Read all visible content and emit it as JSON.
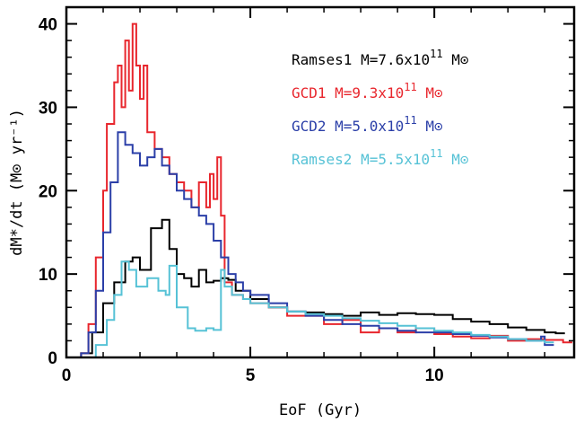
{
  "chart_data": {
    "type": "line",
    "step": true,
    "xlabel": "EoF (Gyr)",
    "ylabel": "dM*/dt (M⊙ yr⁻¹)",
    "xlim": [
      0,
      13.8
    ],
    "ylim": [
      0,
      42
    ],
    "xticks": [
      0,
      5,
      10
    ],
    "yticks": [
      0,
      10,
      20,
      30,
      40
    ],
    "grid": false,
    "legend_position": "top-right",
    "series": [
      {
        "name": "Ramses1",
        "mass_label": "M=7.6x10",
        "mass_exp": "11",
        "mass_unit": "M⊙",
        "color": "#000000",
        "x": [
          0.4,
          0.7,
          1.0,
          1.3,
          1.6,
          1.8,
          2.0,
          2.3,
          2.6,
          2.8,
          3.0,
          3.2,
          3.4,
          3.6,
          3.8,
          4.0,
          4.2,
          4.4,
          4.6,
          5.0,
          5.5,
          6.0,
          6.5,
          7.0,
          7.5,
          8.0,
          8.5,
          9.0,
          9.5,
          10.0,
          10.5,
          11.0,
          11.5,
          12.0,
          12.5,
          13.0,
          13.3
        ],
        "y": [
          0.5,
          3,
          6.5,
          9,
          11.5,
          12,
          10.5,
          15.5,
          16.5,
          13,
          10,
          9.5,
          8.5,
          10.5,
          9,
          9.2,
          9.5,
          9.3,
          8,
          7,
          6,
          5.5,
          5.4,
          5.2,
          5.0,
          5.4,
          5.1,
          5.3,
          5.2,
          5.1,
          4.6,
          4.3,
          4.0,
          3.6,
          3.3,
          3.0,
          2.9
        ]
      },
      {
        "name": "GCD1",
        "mass_label": "M=9.3x10",
        "mass_exp": "11",
        "mass_unit": "M⊙",
        "color": "#e8262d",
        "x": [
          0.4,
          0.6,
          0.8,
          1.0,
          1.1,
          1.3,
          1.4,
          1.5,
          1.6,
          1.7,
          1.8,
          1.9,
          2.0,
          2.1,
          2.2,
          2.4,
          2.6,
          2.8,
          3.0,
          3.2,
          3.4,
          3.6,
          3.8,
          3.9,
          4.0,
          4.1,
          4.2,
          4.3,
          4.5,
          4.8,
          5.0,
          5.5,
          6.0,
          6.5,
          7.0,
          7.5,
          8.0,
          8.5,
          9.0,
          9.5,
          10.0,
          10.5,
          11.0,
          11.5,
          12.0,
          12.5,
          13.0,
          13.5
        ],
        "y": [
          0.5,
          4,
          12,
          20,
          28,
          33,
          35,
          30,
          38,
          32,
          40,
          35,
          31,
          35,
          27,
          25,
          24,
          22,
          21,
          20,
          18,
          21,
          18,
          22,
          19,
          24,
          17,
          9,
          7.5,
          7,
          6.5,
          6,
          5,
          5,
          4,
          4.5,
          3,
          3.5,
          3,
          3.5,
          2.8,
          2.5,
          2.3,
          2.6,
          2.0,
          2.2,
          2.1,
          1.8
        ]
      },
      {
        "name": "GCD2",
        "mass_label": "M=5.0x10",
        "mass_exp": "11",
        "mass_unit": "M⊙",
        "color": "#2b3fa8",
        "x": [
          0.4,
          0.6,
          0.8,
          1.0,
          1.2,
          1.4,
          1.6,
          1.8,
          2.0,
          2.2,
          2.4,
          2.6,
          2.8,
          3.0,
          3.2,
          3.4,
          3.6,
          3.8,
          4.0,
          4.2,
          4.4,
          4.6,
          4.8,
          5.0,
          5.5,
          6.0,
          6.5,
          7.0,
          7.5,
          8.0,
          8.5,
          9.0,
          9.5,
          10.0,
          10.5,
          11.0,
          11.5,
          12.0,
          12.5,
          12.9,
          13.0
        ],
        "y": [
          0.5,
          3,
          8,
          15,
          21,
          27,
          25.5,
          24.5,
          23,
          24,
          25,
          23,
          22,
          20,
          19,
          18,
          17,
          16,
          14,
          12,
          10,
          9,
          8,
          7.5,
          6.5,
          5.5,
          5,
          4.5,
          4,
          3.8,
          3.5,
          3.2,
          3,
          3,
          2.8,
          2.6,
          2.4,
          2.2,
          2.0,
          2.5,
          1.5
        ]
      },
      {
        "name": "Ramses2",
        "mass_label": "M=5.5x10",
        "mass_exp": "11",
        "mass_unit": "M⊙",
        "color": "#56c2d6",
        "x": [
          0.8,
          1.1,
          1.3,
          1.5,
          1.7,
          1.9,
          2.2,
          2.5,
          2.7,
          2.8,
          3.0,
          3.3,
          3.5,
          3.8,
          4.0,
          4.2,
          4.3,
          4.5,
          4.8,
          5.0,
          5.5,
          6.0,
          6.5,
          7.0,
          7.5,
          8.0,
          8.5,
          9.0,
          9.5,
          10.0,
          10.5,
          11.0,
          11.5,
          12.0,
          12.5,
          13.0
        ],
        "y": [
          1.5,
          4.5,
          7.5,
          11.5,
          10.5,
          8.5,
          9.5,
          8.0,
          7.5,
          11,
          6.0,
          3.5,
          3.2,
          3.5,
          3.3,
          10.5,
          8.5,
          7.5,
          7.0,
          6.5,
          6.0,
          5.5,
          5.2,
          5.0,
          4.7,
          4.4,
          4.1,
          3.8,
          3.5,
          3.2,
          3.0,
          2.7,
          2.5,
          2.2,
          2.0,
          1.8
        ]
      }
    ]
  }
}
